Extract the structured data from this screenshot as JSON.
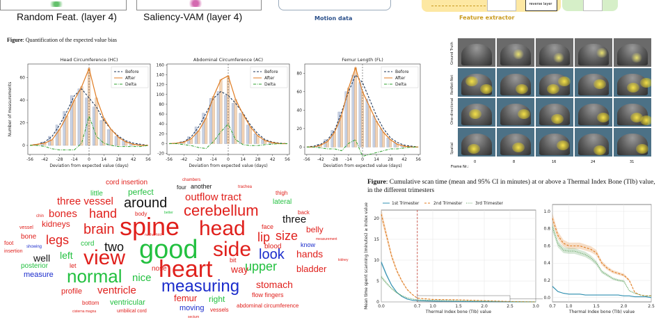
{
  "top": {
    "caption_left": "Random Feat. (layer 4)",
    "caption_mid": "Saliency-VAM (layer 4)",
    "motion_label": "Motion data",
    "feature_label": "Feature extractor",
    "reverse_layer": "reverse layer"
  },
  "figure1": {
    "prefix": "Figure",
    "text": ": Quantification of the expected value bias"
  },
  "figure2": {
    "prefix": "Figure",
    "text": ": Cumulative scan time (mean and 95% CI in minutes) at or above a Thermal Index Bone (TIb) value, in the different trimesters"
  },
  "saliency_grid": {
    "rows": [
      "Ground Truth",
      "ResNet-Net",
      "One-directional",
      "Spatial"
    ],
    "frame_label": "Frame Nr.:",
    "frames": [
      "0",
      "8",
      "16",
      "24",
      "31"
    ]
  },
  "chart_data": [
    {
      "type": "line",
      "title": "Head Circumference (HC)",
      "xlabel": "Deviation from expected value (days)",
      "ylabel": "Number of measurements",
      "xticks": [
        -56,
        -42,
        -28,
        -14,
        0,
        14,
        28,
        42,
        56
      ],
      "yticks": [
        0,
        20,
        40,
        60
      ],
      "xlim": [
        -58,
        58
      ],
      "ylim": [
        -8,
        72
      ],
      "legend": [
        "Before",
        "After",
        "Delta"
      ],
      "x": [
        -56,
        -49,
        -42,
        -35,
        -28,
        -21,
        -14,
        -7,
        0,
        7,
        14,
        21,
        28,
        35,
        42,
        49,
        56
      ],
      "series": [
        {
          "name": "Before",
          "values": [
            0,
            1,
            3,
            8,
            18,
            30,
            44,
            50,
            42,
            34,
            22,
            14,
            8,
            4,
            2,
            1,
            0
          ]
        },
        {
          "name": "After",
          "values": [
            0,
            1,
            2,
            5,
            14,
            26,
            40,
            52,
            68,
            42,
            24,
            14,
            7,
            3,
            1,
            0,
            0
          ]
        },
        {
          "name": "Delta",
          "values": [
            0,
            0,
            -1,
            -3,
            -4,
            -4,
            -4,
            2,
            26,
            8,
            2,
            0,
            -1,
            -1,
            -1,
            -1,
            0
          ]
        }
      ]
    },
    {
      "type": "line",
      "title": "Abdominal Circumference (AC)",
      "xlabel": "Deviation from expected value (days)",
      "ylabel": "",
      "xticks": [
        -56,
        -42,
        -28,
        -14,
        0,
        14,
        28,
        42,
        56
      ],
      "yticks": [
        -20,
        0,
        20,
        40,
        60,
        80,
        100,
        120,
        140,
        160
      ],
      "xlim": [
        -58,
        58
      ],
      "ylim": [
        -22,
        162
      ],
      "legend": [
        "Before",
        "After",
        "Delta"
      ],
      "x": [
        -56,
        -49,
        -42,
        -35,
        -28,
        -21,
        -14,
        -7,
        0,
        7,
        14,
        21,
        28,
        35,
        42,
        49,
        56
      ],
      "series": [
        {
          "name": "Before",
          "values": [
            0,
            1,
            4,
            14,
            34,
            62,
            92,
            106,
            98,
            82,
            62,
            38,
            20,
            8,
            3,
            1,
            0
          ]
        },
        {
          "name": "After",
          "values": [
            0,
            1,
            3,
            10,
            26,
            52,
            96,
            130,
            138,
            90,
            60,
            34,
            16,
            6,
            2,
            0,
            0
          ]
        },
        {
          "name": "Delta",
          "values": [
            0,
            0,
            -2,
            -4,
            -8,
            -10,
            4,
            24,
            40,
            8,
            -2,
            -4,
            -4,
            -2,
            -1,
            0,
            0
          ]
        }
      ]
    },
    {
      "type": "line",
      "title": "Femur Length (FL)",
      "xlabel": "Deviation from expected value (days)",
      "ylabel": "",
      "xticks": [
        -56,
        -42,
        -28,
        -14,
        0,
        14,
        28,
        42,
        56
      ],
      "yticks": [
        0,
        20,
        40,
        60,
        80
      ],
      "xlim": [
        -58,
        58
      ],
      "ylim": [
        -8,
        90
      ],
      "legend": [
        "Before",
        "After",
        "Delta"
      ],
      "x": [
        -56,
        -49,
        -42,
        -35,
        -28,
        -21,
        -14,
        -7,
        0,
        7,
        14,
        21,
        28,
        35,
        42,
        49,
        56
      ],
      "series": [
        {
          "name": "Before",
          "values": [
            0,
            1,
            3,
            8,
            18,
            38,
            60,
            78,
            70,
            52,
            34,
            20,
            10,
            5,
            2,
            1,
            0
          ]
        },
        {
          "name": "After",
          "values": [
            0,
            0,
            2,
            6,
            16,
            34,
            64,
            86,
            60,
            44,
            28,
            16,
            8,
            3,
            1,
            0,
            0
          ]
        },
        {
          "name": "Delta",
          "values": [
            0,
            0,
            -1,
            -2,
            -2,
            -4,
            4,
            8,
            -10,
            -8,
            -6,
            -4,
            -2,
            -2,
            -1,
            0,
            0
          ]
        }
      ]
    },
    {
      "type": "area",
      "title": "",
      "xlabel": "Thermal Index bone (TIb) value",
      "ylabel": "Mean time spent scanning (minutes) ≥ index value",
      "xticks": [
        "0.0",
        "0.7",
        "1.0",
        "1.5",
        "2.0",
        "2.5",
        "3.0"
      ],
      "yticks": [
        0,
        5,
        10,
        15,
        20
      ],
      "xlim": [
        0,
        3.0
      ],
      "ylim": [
        0,
        22
      ],
      "legend": [
        "1st Trimester",
        "2nd Trimester",
        "3rd Trimester"
      ],
      "x": [
        0.0,
        0.1,
        0.2,
        0.3,
        0.4,
        0.5,
        0.6,
        0.7,
        1.0,
        1.5,
        2.0,
        2.5,
        3.0
      ],
      "series": [
        {
          "name": "1st Trimester",
          "values": [
            9.5,
            6.5,
            4,
            2.3,
            1.3,
            0.7,
            0.4,
            0.3,
            0.2,
            0.1,
            0.05,
            0.02,
            0
          ]
        },
        {
          "name": "2nd Trimester",
          "values": [
            21,
            16,
            11,
            7.5,
            5,
            3,
            1.8,
            0.9,
            0.6,
            0.5,
            0.3,
            0.1,
            0
          ]
        },
        {
          "name": "3rd Trimester",
          "values": [
            6,
            4.5,
            3.2,
            2.2,
            1.5,
            1,
            0.7,
            0.5,
            0.4,
            0.3,
            0.2,
            0.05,
            0
          ]
        }
      ],
      "marker_x": 0.7
    },
    {
      "type": "area",
      "title": "",
      "xlabel": "Thermal Index bone (TIb) value",
      "ylabel": "",
      "xticks": [
        "0.7",
        "1.0",
        "1.5",
        "2.0",
        "2.5"
      ],
      "yticks": [
        "0.0",
        "0.2",
        "0.4",
        "0.6",
        "0.8",
        "1.0"
      ],
      "xlim": [
        0.7,
        2.5
      ],
      "ylim": [
        -0.05,
        1.08
      ],
      "x": [
        0.7,
        0.8,
        0.9,
        1.0,
        1.1,
        1.2,
        1.3,
        1.4,
        1.5,
        1.6,
        1.7,
        1.8,
        1.9,
        2.0,
        2.1,
        2.2,
        2.3,
        2.4,
        2.5
      ],
      "series": [
        {
          "name": "1st Trimester",
          "values": [
            0.13,
            0.07,
            0.05,
            0.04,
            0.04,
            0.04,
            0.03,
            0.03,
            0.03,
            0.03,
            0.03,
            0.03,
            0.03,
            0.02,
            0.02,
            0.01,
            0.01,
            0.01,
            0.0
          ]
        },
        {
          "name": "2nd Trimester",
          "values": [
            0.92,
            0.72,
            0.63,
            0.6,
            0.6,
            0.6,
            0.58,
            0.56,
            0.52,
            0.4,
            0.34,
            0.3,
            0.28,
            0.26,
            0.2,
            0.06,
            0.03,
            0.02,
            0.02
          ]
        },
        {
          "name": "3rd Trimester",
          "values": [
            0.82,
            0.62,
            0.55,
            0.54,
            0.54,
            0.52,
            0.5,
            0.46,
            0.4,
            0.3,
            0.26,
            0.22,
            0.2,
            0.19,
            0.08,
            0.05,
            0.03,
            0.02,
            0.02
          ]
        }
      ]
    }
  ],
  "wordcloud": [
    {
      "t": "spine",
      "c": "#e0201c",
      "s": 36
    },
    {
      "t": "good",
      "c": "#23c040",
      "s": 38
    },
    {
      "t": "heart",
      "c": "#e0201c",
      "s": 34
    },
    {
      "t": "head",
      "c": "#e0201c",
      "s": 30
    },
    {
      "t": "side",
      "c": "#e0201c",
      "s": 30
    },
    {
      "t": "view",
      "c": "#e0201c",
      "s": 30
    },
    {
      "t": "normal",
      "c": "#23c040",
      "s": 26
    },
    {
      "t": "measuring",
      "c": "#1b2ccc",
      "s": 24
    },
    {
      "t": "cerebellum",
      "c": "#e0201c",
      "s": 22
    },
    {
      "t": "brain",
      "c": "#e0201c",
      "s": 20
    },
    {
      "t": "around",
      "c": "#111111",
      "s": 20
    },
    {
      "t": "look",
      "c": "#1b2ccc",
      "s": 20
    },
    {
      "t": "upper",
      "c": "#23c040",
      "s": 18
    },
    {
      "t": "legs",
      "c": "#e0201c",
      "s": 18
    },
    {
      "t": "two",
      "c": "#111111",
      "s": 18
    },
    {
      "t": "lip",
      "c": "#e0201c",
      "s": 18
    },
    {
      "t": "size",
      "c": "#e0201c",
      "s": 18
    },
    {
      "t": "hand",
      "c": "#e0201c",
      "s": 18
    },
    {
      "t": "outflow tract",
      "c": "#e0201c",
      "s": 15
    },
    {
      "t": "three vessel",
      "c": "#e0201c",
      "s": 15
    },
    {
      "t": "bones",
      "c": "#e0201c",
      "s": 15
    },
    {
      "t": "ventricle",
      "c": "#e0201c",
      "s": 15
    },
    {
      "t": "stomach",
      "c": "#e0201c",
      "s": 14
    },
    {
      "t": "hands",
      "c": "#e0201c",
      "s": 14
    },
    {
      "t": "bladder",
      "c": "#e0201c",
      "s": 13
    },
    {
      "t": "nice",
      "c": "#23c040",
      "s": 15
    },
    {
      "t": "three",
      "c": "#111111",
      "s": 15
    },
    {
      "t": "left",
      "c": "#23c040",
      "s": 14
    },
    {
      "t": "well",
      "c": "#111111",
      "s": 14
    },
    {
      "t": "way",
      "c": "#e0201c",
      "s": 14
    },
    {
      "t": "femur",
      "c": "#e0201c",
      "s": 13
    },
    {
      "t": "kidneys",
      "c": "#e0201c",
      "s": 12
    },
    {
      "t": "perfect",
      "c": "#23c040",
      "s": 12
    },
    {
      "t": "belly",
      "c": "#e0201c",
      "s": 12
    },
    {
      "t": "right",
      "c": "#23c040",
      "s": 12
    },
    {
      "t": "moving",
      "c": "#1b2ccc",
      "s": 11
    },
    {
      "t": "ventricular",
      "c": "#23c040",
      "s": 11
    },
    {
      "t": "profile",
      "c": "#e0201c",
      "s": 11
    },
    {
      "t": "measure",
      "c": "#1b2ccc",
      "s": 11
    },
    {
      "t": "posterior",
      "c": "#23c040",
      "s": 10
    },
    {
      "t": "cord insertion",
      "c": "#e0201c",
      "s": 10
    },
    {
      "t": "little",
      "c": "#23c040",
      "s": 10
    },
    {
      "t": "lateral",
      "c": "#23c040",
      "s": 10
    },
    {
      "t": "blood",
      "c": "#e0201c",
      "s": 10
    },
    {
      "t": "cord",
      "c": "#23c040",
      "s": 10
    },
    {
      "t": "bone",
      "c": "#e0201c",
      "s": 10
    },
    {
      "t": "face",
      "c": "#e0201c",
      "s": 9
    },
    {
      "t": "nose",
      "c": "#e0201c",
      "s": 10
    },
    {
      "t": "know",
      "c": "#1b2ccc",
      "s": 9
    },
    {
      "t": "bit",
      "c": "#e0201c",
      "s": 9
    },
    {
      "t": "let",
      "c": "#e0201c",
      "s": 9
    },
    {
      "t": "another",
      "c": "#111111",
      "s": 9
    },
    {
      "t": "four",
      "c": "#111111",
      "s": 8
    },
    {
      "t": "thigh",
      "c": "#e0201c",
      "s": 8
    },
    {
      "t": "back",
      "c": "#e0201c",
      "s": 8
    },
    {
      "t": "body",
      "c": "#e0201c",
      "s": 8
    },
    {
      "t": "flow fingers",
      "c": "#e0201c",
      "s": 9
    },
    {
      "t": "bottom",
      "c": "#e0201c",
      "s": 8
    },
    {
      "t": "abdominal circumference",
      "c": "#e0201c",
      "s": 8
    },
    {
      "t": "vessels",
      "c": "#e0201c",
      "s": 8
    },
    {
      "t": "umbilical cord",
      "c": "#e0201c",
      "s": 7
    },
    {
      "t": "foot",
      "c": "#e0201c",
      "s": 8
    },
    {
      "t": "vessel",
      "c": "#e0201c",
      "s": 7
    },
    {
      "t": "chin",
      "c": "#e0201c",
      "s": 6
    },
    {
      "t": "insertion",
      "c": "#e0201c",
      "s": 7
    },
    {
      "t": "trachea",
      "c": "#e0201c",
      "s": 6
    },
    {
      "t": "chambers",
      "c": "#e0201c",
      "s": 6
    },
    {
      "t": "showing",
      "c": "#1b2ccc",
      "s": 6
    },
    {
      "t": "sectum",
      "c": "#e0201c",
      "s": 5
    },
    {
      "t": "cisterna magna",
      "c": "#e0201c",
      "s": 5
    },
    {
      "t": "measurement",
      "c": "#e0201c",
      "s": 5
    },
    {
      "t": "kidney",
      "c": "#e0201c",
      "s": 5
    },
    {
      "t": "better",
      "c": "#23c040",
      "s": 5
    },
    {
      "t": "nuchal fold",
      "c": "#e0201c",
      "s": 5
    }
  ]
}
